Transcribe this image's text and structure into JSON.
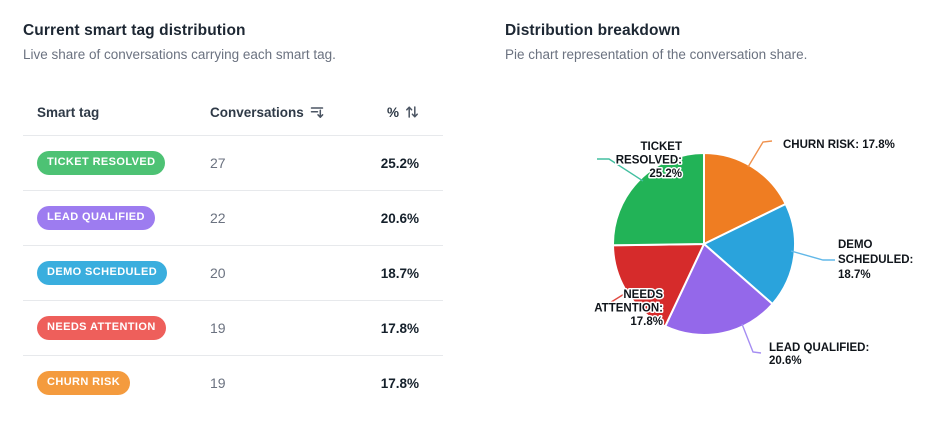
{
  "left_panel": {
    "title": "Current smart tag distribution",
    "subtitle": "Live share of conversations carrying each smart tag.",
    "table": {
      "columns": [
        "Smart tag",
        "Conversations",
        "%"
      ],
      "conversations_sort_icon": "sort-descending-icon",
      "percent_sort_icon": "sort-up-down-icon",
      "rows": [
        {
          "tag": "TICKET RESOLVED",
          "tag_color": "#4dc274",
          "conversations": "27",
          "percent": "25.2%"
        },
        {
          "tag": "LEAD QUALIFIED",
          "tag_color": "#9d7cf0",
          "conversations": "22",
          "percent": "20.6%"
        },
        {
          "tag": "DEMO SCHEDULED",
          "tag_color": "#3aaede",
          "conversations": "20",
          "percent": "18.7%"
        },
        {
          "tag": "NEEDS ATTENTION",
          "tag_color": "#ee5f5b",
          "conversations": "19",
          "percent": "17.8%"
        },
        {
          "tag": "CHURN RISK",
          "tag_color": "#f49b3e",
          "conversations": "19",
          "percent": "17.8%"
        }
      ]
    }
  },
  "right_panel": {
    "title": "Distribution breakdown",
    "subtitle": "Pie chart representation of the conversation share."
  },
  "chart_data": {
    "type": "pie",
    "title": "Distribution breakdown",
    "start_angle_deg": 0,
    "direction": "clockwise",
    "slices": [
      {
        "label": "CHURN RISK",
        "value": 19,
        "percent": "17.8%",
        "color": "#ef7d22",
        "leader_color": "#f0924e",
        "label_lines": [
          "CHURN RISK: 17.8%"
        ]
      },
      {
        "label": "DEMO SCHEDULED",
        "value": 20,
        "percent": "18.7%",
        "color": "#2aa3dc",
        "leader_color": "#62b8e8",
        "label_lines": [
          "DEMO",
          "SCHEDULED:",
          "18.7%"
        ]
      },
      {
        "label": "LEAD QUALIFIED",
        "value": 22,
        "percent": "20.6%",
        "color": "#9468ea",
        "leader_color": "#a58df2",
        "label_lines": [
          "LEAD QUALIFIED:",
          "20.6%"
        ]
      },
      {
        "label": "NEEDS ATTENTION",
        "value": 19,
        "percent": "17.8%",
        "color": "#d62b2b",
        "leader_color": "#e04b43",
        "label_lines": [
          "NEEDS",
          "ATTENTION:",
          "17.8%"
        ]
      },
      {
        "label": "TICKET RESOLVED",
        "value": 27,
        "percent": "25.2%",
        "color": "#22b357",
        "leader_color": "#43bfa0",
        "label_lines": [
          "TICKET",
          "RESOLVED:",
          "25.2%"
        ]
      }
    ]
  }
}
